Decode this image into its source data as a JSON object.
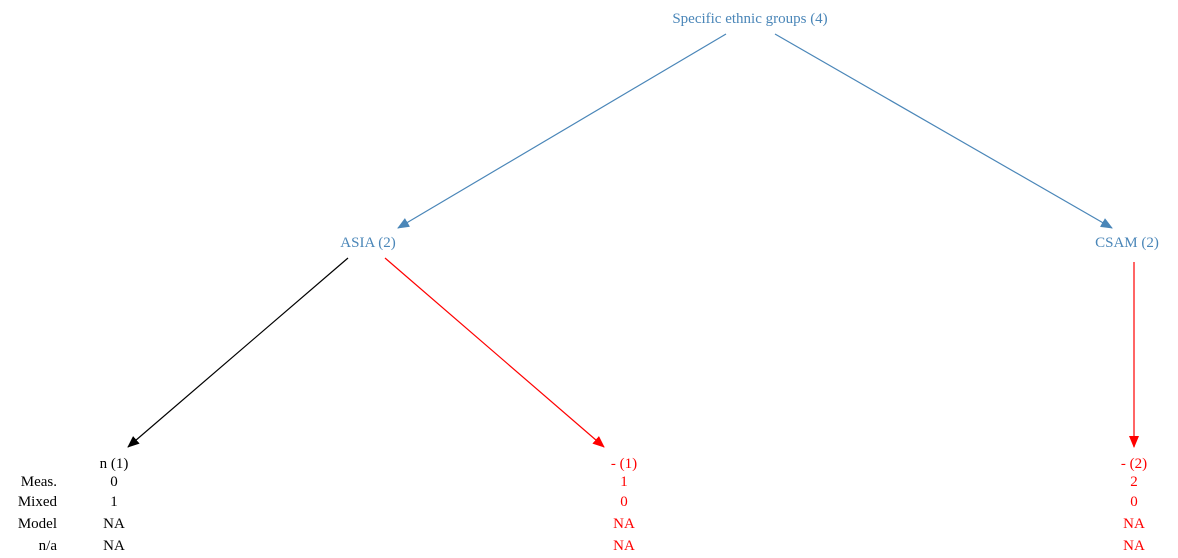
{
  "colors": {
    "blue": "#4a86b8",
    "red": "#ff0000",
    "black": "#000000"
  },
  "nodes": {
    "root": {
      "label": "Specific ethnic groups (4)"
    },
    "asia": {
      "label": "ASIA (2)"
    },
    "csam": {
      "label": "CSAM (2)"
    },
    "leaf_n": {
      "label": "n (1)",
      "meas": "0",
      "mixed": "1",
      "model": "NA",
      "na": "NA"
    },
    "leaf_dash1": {
      "label": "- (1)",
      "meas": "1",
      "mixed": "0",
      "model": "NA",
      "na": "NA"
    },
    "leaf_dash2": {
      "label": "- (2)",
      "meas": "2",
      "mixed": "0",
      "model": "NA",
      "na": "NA"
    }
  },
  "row_labels": {
    "meas": "Meas.",
    "mixed": "Mixed",
    "model": "Model",
    "na": "n/a"
  },
  "edges": [
    {
      "id": "root-asia",
      "color": "blue"
    },
    {
      "id": "root-csam",
      "color": "blue"
    },
    {
      "id": "asia-n",
      "color": "black"
    },
    {
      "id": "asia-dash1",
      "color": "red"
    },
    {
      "id": "csam-dash2",
      "color": "red"
    }
  ]
}
